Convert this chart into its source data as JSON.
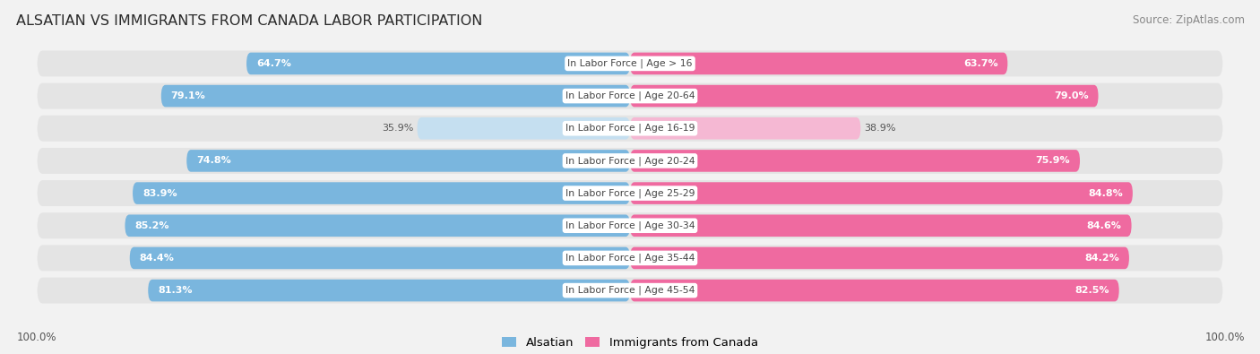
{
  "title": "ALSATIAN VS IMMIGRANTS FROM CANADA LABOR PARTICIPATION",
  "source": "Source: ZipAtlas.com",
  "categories": [
    "In Labor Force | Age > 16",
    "In Labor Force | Age 20-64",
    "In Labor Force | Age 16-19",
    "In Labor Force | Age 20-24",
    "In Labor Force | Age 25-29",
    "In Labor Force | Age 30-34",
    "In Labor Force | Age 35-44",
    "In Labor Force | Age 45-54"
  ],
  "alsatian_values": [
    64.7,
    79.1,
    35.9,
    74.8,
    83.9,
    85.2,
    84.4,
    81.3
  ],
  "canada_values": [
    63.7,
    79.0,
    38.9,
    75.9,
    84.8,
    84.6,
    84.2,
    82.5
  ],
  "alsatian_color_full": "#7ab6de",
  "alsatian_color_light": "#c5dff0",
  "canada_color_full": "#ef6aa0",
  "canada_color_light": "#f5b8d3",
  "background_color": "#f2f2f2",
  "row_bg_color": "#e4e4e4",
  "max_value": 100.0,
  "legend_alsatian": "Alsatian",
  "legend_canada": "Immigrants from Canada",
  "bottom_left_label": "100.0%",
  "bottom_right_label": "100.0%"
}
